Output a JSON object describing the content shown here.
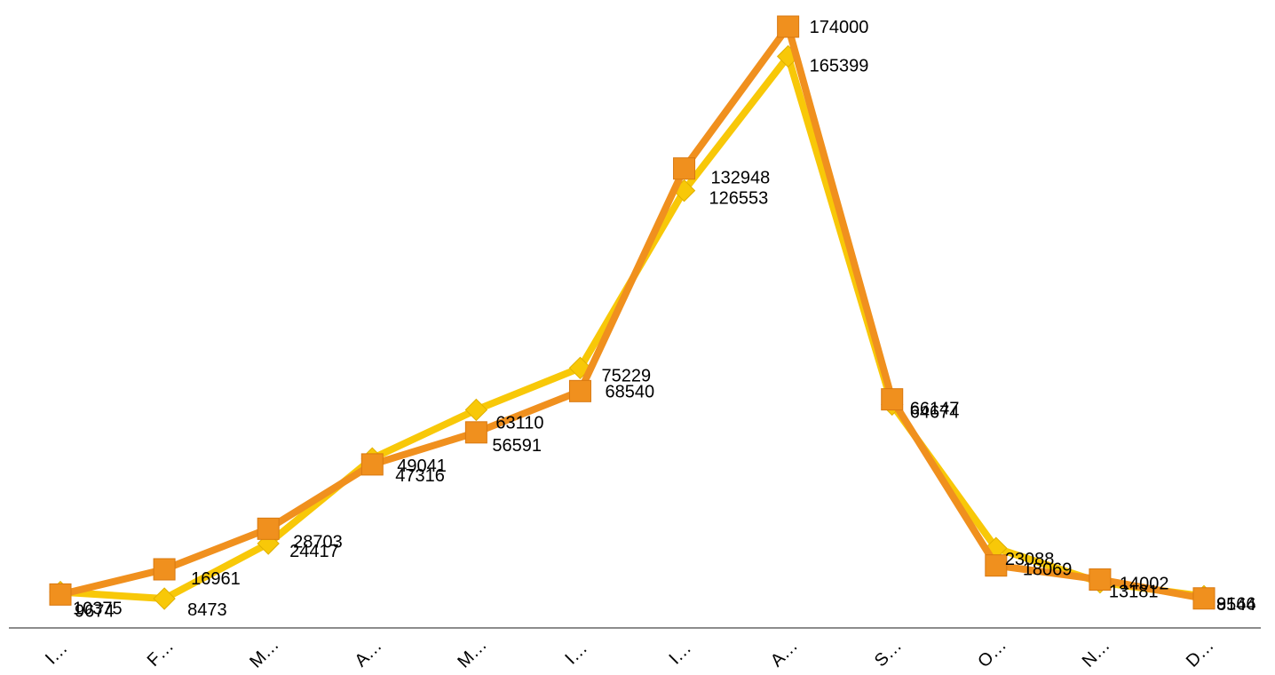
{
  "chart_data": {
    "type": "line",
    "title": "",
    "xlabel": "",
    "ylabel": "",
    "categories": [
      "I…",
      "F…",
      "M…",
      "A…",
      "M…",
      "I…",
      "I…",
      "A…",
      "S…",
      "O…",
      "N…",
      "D…"
    ],
    "ylim": [
      0,
      180000
    ],
    "grid": false,
    "legend": "none",
    "series": [
      {
        "color": "#F0901E",
        "marker": "square",
        "values": [
          9674,
          16961,
          28703,
          47316,
          56591,
          68540,
          132948,
          174000,
          66147,
          18069,
          14002,
          8544
        ]
      },
      {
        "color": "#F8C808",
        "marker": "diamond",
        "values": [
          10375,
          8473,
          24417,
          49041,
          63110,
          75229,
          126553,
          165399,
          64674,
          23088,
          13181,
          9166
        ]
      }
    ],
    "label_positions_note": ""
  }
}
